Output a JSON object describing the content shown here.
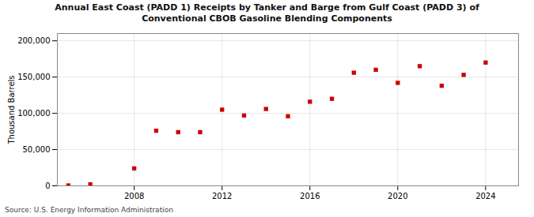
{
  "chart_data": {
    "type": "scatter",
    "title": "Annual East Coast (PADD 1) Receipts by Tanker and Barge from Gulf Coast (PADD 3) of\nConventional CBOB Gasoline Blending Components",
    "ylabel": "Thousand Barrels",
    "source": "Source: U.S. Energy Information Administration",
    "x": [
      2005,
      2006,
      2008,
      2009,
      2010,
      2011,
      2012,
      2013,
      2014,
      2015,
      2016,
      2017,
      2018,
      2019,
      2020,
      2021,
      2022,
      2023,
      2024
    ],
    "values": [
      500,
      2000,
      24000,
      76000,
      74000,
      74000,
      105000,
      97000,
      106000,
      96000,
      116000,
      120000,
      156000,
      160000,
      142000,
      165000,
      138000,
      153000,
      170000
    ],
    "color": "#cc0000",
    "marker": "square",
    "xlim": [
      2004.5,
      2025.5
    ],
    "ylim": [
      0,
      210000
    ],
    "xticks": [
      2008,
      2012,
      2016,
      2020,
      2024
    ],
    "yticks": [
      0,
      {
        "value": 50000,
        "label": "50,000"
      },
      {
        "value": 100000,
        "label": "100,000"
      },
      {
        "value": 150000,
        "label": "150,000"
      },
      {
        "value": 200000,
        "label": "200,000"
      }
    ],
    "grid": true
  }
}
